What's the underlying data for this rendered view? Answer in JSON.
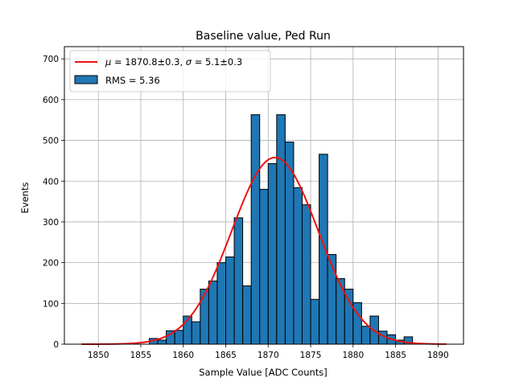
{
  "chart_data": {
    "type": "bar",
    "title": "Baseline value, Ped Run",
    "xlabel": "Sample Value [ADC Counts]",
    "ylabel": "Events",
    "xlim": [
      1846,
      1893
    ],
    "ylim": [
      0,
      730
    ],
    "xticks": [
      1850,
      1855,
      1860,
      1865,
      1870,
      1875,
      1880,
      1885,
      1890
    ],
    "yticks": [
      0,
      100,
      200,
      300,
      400,
      500,
      600,
      700
    ],
    "grid": true,
    "legend_position": "top-left",
    "bin_width": 1,
    "bin_left_edges": [
      1855,
      1856,
      1857,
      1858,
      1859,
      1860,
      1861,
      1862,
      1863,
      1864,
      1865,
      1866,
      1867,
      1868,
      1869,
      1870,
      1871,
      1872,
      1873,
      1874,
      1875,
      1876,
      1877,
      1878,
      1879,
      1880,
      1881,
      1882,
      1883,
      1884,
      1885,
      1886
    ],
    "values": [
      0,
      14,
      10,
      33,
      34,
      69,
      55,
      135,
      155,
      200,
      214,
      310,
      143,
      563,
      380,
      443,
      563,
      496,
      384,
      342,
      110,
      466,
      220,
      161,
      135,
      102,
      44,
      69,
      32,
      23,
      10,
      18
    ],
    "fit": {
      "mu": 1870.8,
      "sigma": 5.1,
      "amplitude": 458,
      "x_range": [
        1848,
        1891
      ]
    },
    "series": [
      {
        "name": "μ = 1870.8±0.3, σ = 5.1±0.3",
        "color": "#ee1111",
        "kind": "line"
      },
      {
        "name": "RMS = 5.36",
        "color": "#1f77b4",
        "kind": "histogram"
      }
    ],
    "legend": {
      "fit_label_prefix": "μ = ",
      "fit_label_mu": "1870.8±0.3, ",
      "fit_label_sigma_sym": "σ = ",
      "fit_label_sigma": "5.1±0.3",
      "hist_label": "RMS = 5.36"
    },
    "colors": {
      "bar_fill": "#1f77b4",
      "bar_edge": "#000000",
      "fit_line": "#ee1111",
      "grid": "#b0b0b0"
    }
  }
}
